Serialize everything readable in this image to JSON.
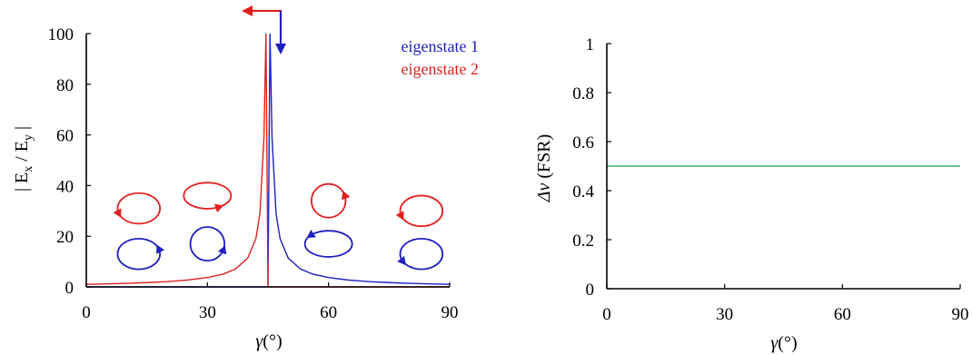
{
  "chart_data": [
    {
      "type": "line",
      "xlabel": "γ(°)",
      "ylabel": "| E_x / E_y |",
      "ylabel_parts": {
        "bar_open": "| E",
        "sub_x": "x",
        "slash": " / E",
        "sub_y": "y",
        "bar_close": " |"
      },
      "xlabel_parts": {
        "sym": "γ",
        "unit": "(°)"
      },
      "xlim": [
        0,
        90
      ],
      "ylim": [
        0,
        100
      ],
      "xticks": [
        "0",
        "30",
        "60",
        "90"
      ],
      "yticks": [
        "0",
        "20",
        "40",
        "60",
        "80",
        "100"
      ],
      "legend_position": "top-right",
      "series": [
        {
          "name": "eigenstate 1",
          "color": "#1f1fbf",
          "description_of_shape": "|tan(γ)| rising to divergence at 45°, near zero below 45°",
          "x": [
            0,
            45,
            45.5,
            46,
            47,
            48,
            50,
            53,
            56,
            60,
            65,
            70,
            75,
            80,
            85,
            90
          ],
          "y": [
            0,
            0,
            100,
            59,
            29,
            19,
            11.4,
            7.1,
            5.1,
            3.7,
            2.7,
            2.1,
            1.7,
            1.4,
            1.2,
            1.0
          ]
        },
        {
          "name": "eigenstate 2",
          "color": "#e02020",
          "description_of_shape": "rising to divergence at 45° from the left, near zero above 45°",
          "x": [
            0,
            5,
            10,
            15,
            20,
            25,
            30,
            34,
            37,
            40,
            42,
            43,
            44,
            44.5,
            45,
            90
          ],
          "y": [
            1.0,
            1.2,
            1.4,
            1.7,
            2.1,
            2.7,
            3.7,
            5.1,
            7.1,
            11.4,
            19,
            29,
            59,
            100,
            0,
            0
          ]
        }
      ],
      "annotations": {
        "arrow_red": "red arrow pointing left at top near γ≈45°",
        "arrow_blue": "blue arrow pointing down at top near γ≈45°",
        "polarization_icons_red": [
          {
            "x": 13,
            "y": 31,
            "rx_deg": 6.5,
            "ry_val": 6.5,
            "tilt_deg": 0,
            "arrow_at_deg": 200
          },
          {
            "x": 30,
            "y": 36,
            "rx_deg": 7.5,
            "ry_val": 5,
            "tilt_deg": 0,
            "arrow_at_deg": 300
          },
          {
            "x": 60,
            "y": 34,
            "rx_deg": 4.8,
            "ry_val": 7.5,
            "tilt_deg": 0,
            "arrow_at_deg": 20
          },
          {
            "x": 83,
            "y": 30,
            "rx_deg": 6.5,
            "ry_val": 6.5,
            "tilt_deg": 0,
            "arrow_at_deg": 200
          }
        ],
        "polarization_icons_blue": [
          {
            "x": 13,
            "y": 13,
            "rx_deg": 6.5,
            "ry_val": 6.5,
            "tilt_deg": 0,
            "arrow_at_deg": 20
          },
          {
            "x": 30,
            "y": 17,
            "rx_deg": 4.8,
            "ry_val": 7.5,
            "tilt_deg": 0,
            "arrow_at_deg": 340
          },
          {
            "x": 60,
            "y": 17,
            "rx_deg": 7.5,
            "ry_val": 5,
            "tilt_deg": 0,
            "arrow_at_deg": 140
          },
          {
            "x": 83,
            "y": 13,
            "rx_deg": 6.5,
            "ry_val": 6.5,
            "tilt_deg": 0,
            "arrow_at_deg": 210
          }
        ]
      }
    },
    {
      "type": "line",
      "xlabel": "γ(°)",
      "ylabel": "Δν (FSR)",
      "xlabel_parts": {
        "sym": "γ",
        "unit": "(°)"
      },
      "ylabel_parts": {
        "sym": "Δν",
        "unit": " (FSR)"
      },
      "xlim": [
        0,
        90
      ],
      "ylim": [
        0,
        1
      ],
      "xticks": [
        "0",
        "30",
        "60",
        "90"
      ],
      "yticks": [
        "0",
        "0.2",
        "0.4",
        "0.6",
        "0.8",
        "1"
      ],
      "series": [
        {
          "color": "#3cb371",
          "x": [
            0,
            90
          ],
          "y": [
            0.5,
            0.5
          ]
        }
      ]
    }
  ]
}
